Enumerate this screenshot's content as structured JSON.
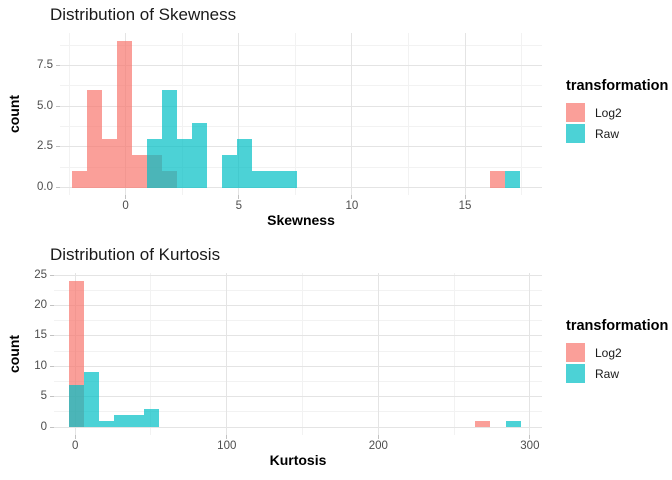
{
  "colors": {
    "background": "#FFFFFF",
    "log2_base": "#F8766D",
    "raw_base": "#00BFC4",
    "log2_fill": "rgba(248,118,109,0.7)",
    "raw_fill": "rgba(0,191,196,0.7)",
    "grid_major": "#E4E4E4",
    "grid_minor": "#F2F2F2",
    "tick_mark": "#C2C2C2",
    "tick_label": "#4D4D4D"
  },
  "chart_data": [
    {
      "type": "bar",
      "subtype": "overlaid-histogram",
      "title": "Distribution of Skewness",
      "xlabel": "Skewness",
      "ylabel": "count",
      "legend_title": "transformation",
      "legend_position": "right",
      "grid": true,
      "bin_width": 0.665,
      "x_domain": [
        -2.9,
        18.4
      ],
      "y_domain": [
        -0.45,
        9.5
      ],
      "x_ticks": [
        {
          "v": 0,
          "label": "0"
        },
        {
          "v": 5,
          "label": "5"
        },
        {
          "v": 10,
          "label": "10"
        },
        {
          "v": 15,
          "label": "15"
        }
      ],
      "x_minor": [
        -2.5,
        2.5,
        7.5,
        12.5,
        17.5
      ],
      "y_ticks": [
        {
          "v": 0,
          "label": "0.0"
        },
        {
          "v": 2.5,
          "label": "2.5"
        },
        {
          "v": 5,
          "label": "5.0"
        },
        {
          "v": 7.5,
          "label": "7.5"
        }
      ],
      "y_minor": [
        1.25,
        3.75,
        6.25,
        8.75
      ],
      "series": [
        {
          "name": "Log2",
          "fill": "rgba(248,118,109,0.7)",
          "bars": [
            {
              "x": -2.37,
              "count": 1
            },
            {
              "x": -1.71,
              "count": 6
            },
            {
              "x": -1.04,
              "count": 3
            },
            {
              "x": -0.38,
              "count": 9
            },
            {
              "x": 0.28,
              "count": 2
            },
            {
              "x": 0.95,
              "count": 2
            },
            {
              "x": 1.61,
              "count": 1
            },
            {
              "x": 16.1,
              "count": 1
            }
          ]
        },
        {
          "name": "Raw",
          "fill": "rgba(0,191,196,0.7)",
          "bars": [
            {
              "x": 0.95,
              "count": 3
            },
            {
              "x": 1.61,
              "count": 6
            },
            {
              "x": 2.27,
              "count": 3
            },
            {
              "x": 2.94,
              "count": 4
            },
            {
              "x": 4.27,
              "count": 2
            },
            {
              "x": 4.93,
              "count": 3
            },
            {
              "x": 5.6,
              "count": 1
            },
            {
              "x": 6.26,
              "count": 1
            },
            {
              "x": 6.93,
              "count": 1
            },
            {
              "x": 16.77,
              "count": 1
            }
          ]
        }
      ]
    },
    {
      "type": "bar",
      "subtype": "overlaid-histogram",
      "title": "Distribution of Kurtosis",
      "xlabel": "Kurtosis",
      "ylabel": "count",
      "legend_title": "transformation",
      "legend_position": "right",
      "grid": true,
      "bin_width": 9.87,
      "x_domain": [
        -14,
        308
      ],
      "y_domain": [
        -1.3,
        25.35
      ],
      "x_ticks": [
        {
          "v": 0,
          "label": "0"
        },
        {
          "v": 100,
          "label": "100"
        },
        {
          "v": 200,
          "label": "200"
        },
        {
          "v": 300,
          "label": "300"
        }
      ],
      "x_minor": [
        50,
        150,
        250
      ],
      "y_ticks": [
        {
          "v": 0,
          "label": "0"
        },
        {
          "v": 5,
          "label": "5"
        },
        {
          "v": 10,
          "label": "10"
        },
        {
          "v": 15,
          "label": "15"
        },
        {
          "v": 20,
          "label": "20"
        },
        {
          "v": 25,
          "label": "25"
        }
      ],
      "y_minor": [
        2.5,
        7.5,
        12.5,
        17.5,
        22.5
      ],
      "series": [
        {
          "name": "Log2",
          "fill": "rgba(248,118,109,0.7)",
          "bars": [
            {
              "x": -4,
              "count": 24
            },
            {
              "x": 264,
              "count": 1
            }
          ]
        },
        {
          "name": "Raw",
          "fill": "rgba(0,191,196,0.7)",
          "bars": [
            {
              "x": -4,
              "count": 7
            },
            {
              "x": 5.9,
              "count": 9
            },
            {
              "x": 15.8,
              "count": 1
            },
            {
              "x": 25.6,
              "count": 2
            },
            {
              "x": 35.5,
              "count": 2
            },
            {
              "x": 45.4,
              "count": 3
            },
            {
              "x": 284,
              "count": 1
            }
          ]
        }
      ]
    }
  ]
}
